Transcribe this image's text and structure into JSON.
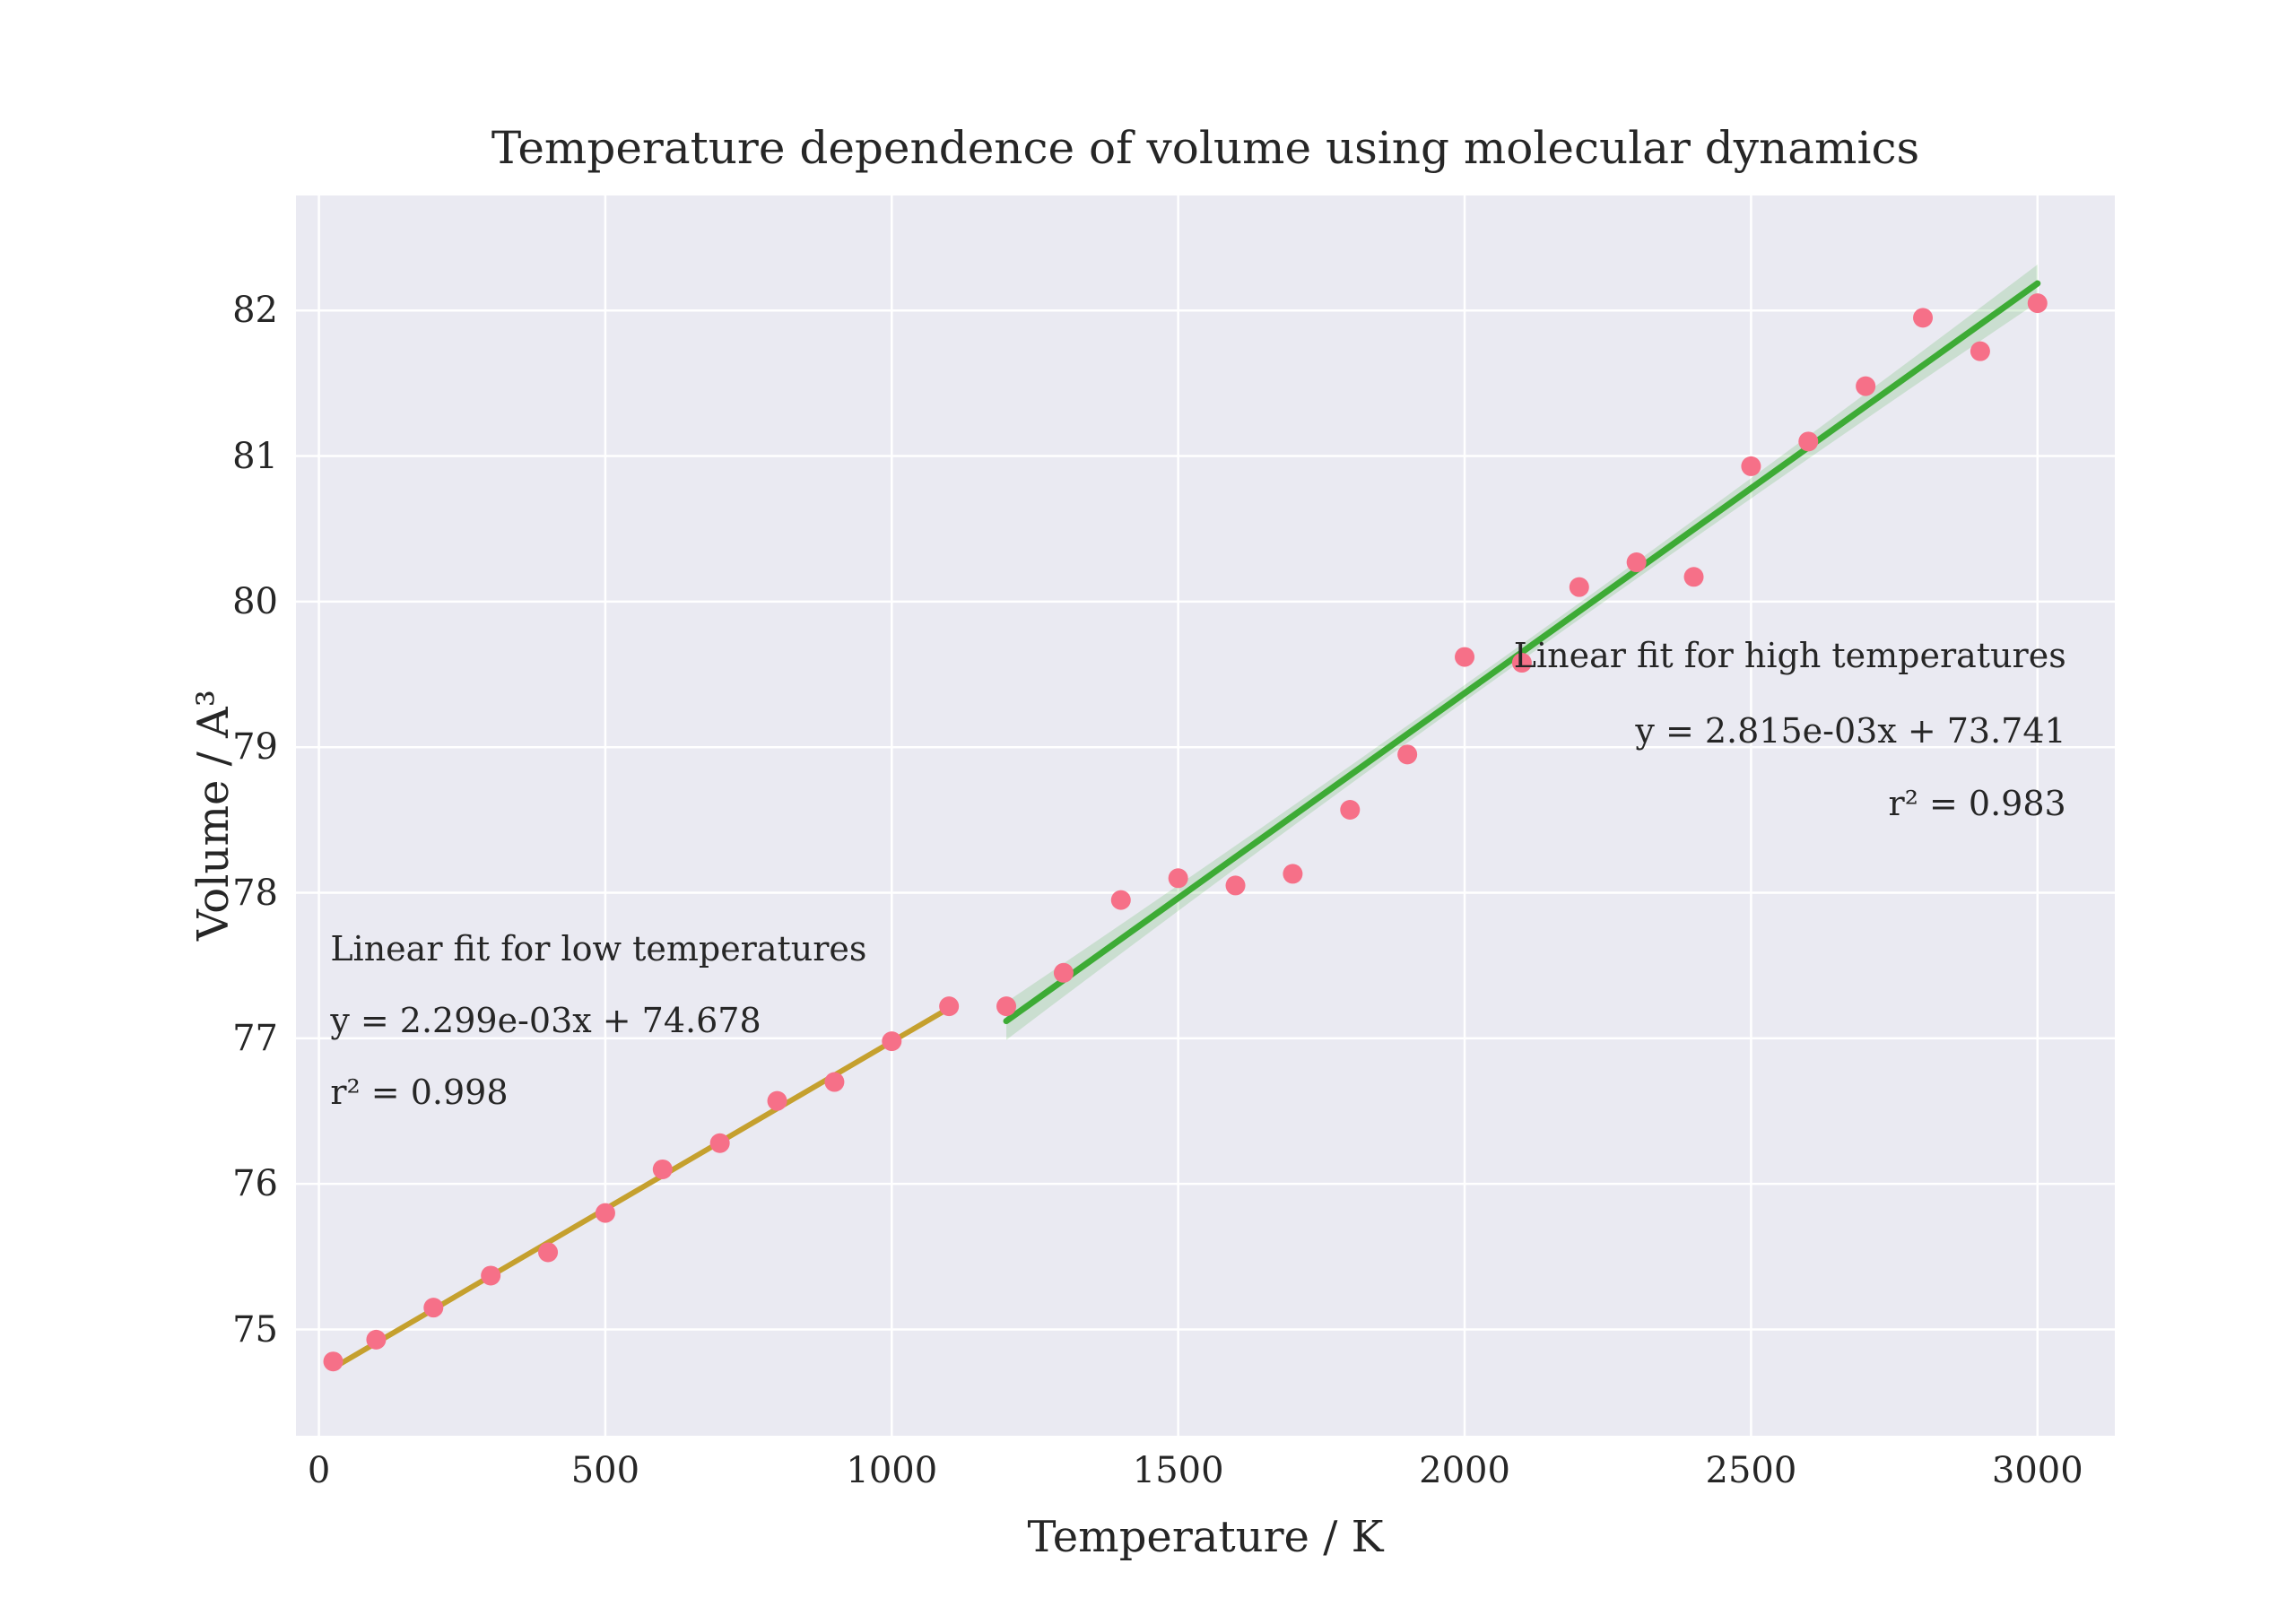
{
  "chart_data": {
    "type": "scatter",
    "title": "Temperature dependence of volume using molecular dynamics",
    "xlabel": "Temperature / K",
    "ylabel": "Volume / A³",
    "xlim": [
      -40,
      3135
    ],
    "ylim": [
      74.27,
      82.79
    ],
    "xticks": [
      0,
      500,
      1000,
      1500,
      2000,
      2500,
      3000
    ],
    "yticks": [
      75,
      76,
      77,
      78,
      79,
      80,
      81,
      82
    ],
    "grid": true,
    "legend_position": "none",
    "plot_bg": "#eaeaf2",
    "grid_color": "#ffffff",
    "text_color": "#262626",
    "scatter": {
      "name": "md-data-points",
      "color": "#f67088",
      "x": [
        25,
        100,
        200,
        300,
        400,
        500,
        600,
        700,
        800,
        900,
        1000,
        1100,
        1200,
        1300,
        1400,
        1500,
        1600,
        1700,
        1800,
        1900,
        2000,
        2100,
        2200,
        2300,
        2400,
        2500,
        2600,
        2700,
        2800,
        2900,
        3000
      ],
      "y": [
        74.78,
        74.93,
        75.15,
        75.37,
        75.53,
        75.8,
        76.1,
        76.28,
        76.57,
        76.7,
        76.98,
        77.22,
        77.22,
        77.45,
        77.95,
        78.1,
        78.05,
        78.13,
        78.57,
        78.95,
        79.62,
        79.58,
        80.1,
        80.27,
        80.17,
        80.93,
        81.1,
        81.48,
        81.95,
        81.72,
        82.05
      ]
    },
    "fits": [
      {
        "name": "low-temperature-fit",
        "slope": 0.002299,
        "intercept": 74.678,
        "x_start": 25,
        "x_end": 1100,
        "color": "#c5a02e",
        "line_width": 6,
        "band": false
      },
      {
        "name": "high-temperature-fit",
        "slope": 0.002815,
        "intercept": 73.741,
        "x_start": 1200,
        "x_end": 3000,
        "color": "#3dab35",
        "line_width": 7,
        "band": true,
        "band_color": "#3dab35",
        "band_opacity": 0.18
      }
    ],
    "annotations": [
      {
        "name": "low-fit-annotation",
        "align": "left",
        "x": 20,
        "lines": [
          "Linear fit for low temperatures",
          "y = 2.299e-03x + 74.678",
          "r² = 0.998"
        ],
        "line_y": [
          77.6,
          77.11,
          76.62
        ]
      },
      {
        "name": "high-fit-annotation",
        "align": "right",
        "x": 3050,
        "lines": [
          "Linear fit for high temperatures",
          "y = 2.815e-03x + 73.741",
          "r² = 0.983"
        ],
        "line_y": [
          79.62,
          79.1,
          78.6
        ]
      }
    ]
  }
}
